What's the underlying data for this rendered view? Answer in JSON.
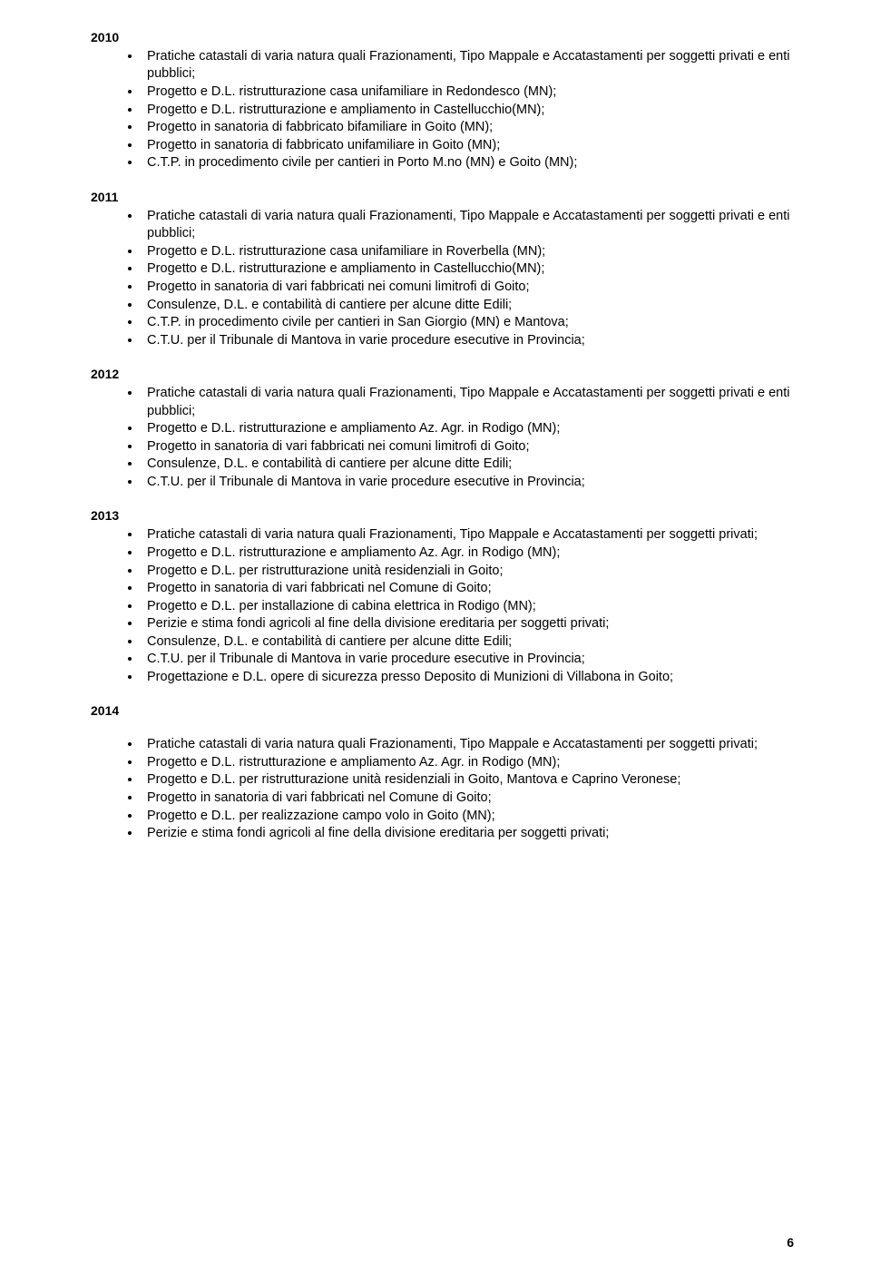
{
  "fontsize_year": 14,
  "fontsize_body": 14.5,
  "fontsize_pagenum": 14,
  "color_text": "#000000",
  "color_background": "#ffffff",
  "page_number": "6",
  "sections": [
    {
      "year": "2010",
      "items": [
        "Pratiche catastali di varia natura quali Frazionamenti, Tipo Mappale e Accatastamenti per soggetti privati e enti pubblici;",
        "Progetto e D.L. ristrutturazione casa unifamiliare in Redondesco (MN);",
        "Progetto e D.L. ristrutturazione e ampliamento in Castellucchio(MN);",
        "Progetto in sanatoria di fabbricato bifamiliare in Goito (MN);",
        "Progetto in sanatoria di fabbricato unifamiliare in Goito (MN);",
        "C.T.P. in procedimento civile per cantieri in Porto M.no (MN) e Goito (MN);"
      ]
    },
    {
      "year": "2011",
      "items": [
        "Pratiche catastali di varia natura quali Frazionamenti, Tipo Mappale e Accatastamenti per soggetti privati e enti pubblici;",
        "Progetto e D.L. ristrutturazione casa unifamiliare in Roverbella (MN);",
        "Progetto e D.L. ristrutturazione e ampliamento in Castellucchio(MN);",
        "Progetto in sanatoria di vari fabbricati nei comuni limitrofi di Goito;",
        "Consulenze, D.L. e contabilità di cantiere per alcune ditte Edili;",
        "C.T.P. in procedimento civile per cantieri in San Giorgio (MN) e Mantova;",
        "C.T.U. per il Tribunale di Mantova in varie procedure esecutive in Provincia;"
      ]
    },
    {
      "year": "2012",
      "items": [
        "Pratiche catastali di varia natura quali Frazionamenti, Tipo Mappale e Accatastamenti per soggetti privati e enti pubblici;",
        "Progetto e D.L. ristrutturazione e ampliamento Az. Agr. in Rodigo (MN);",
        "Progetto in sanatoria di vari fabbricati nei comuni limitrofi di Goito;",
        "Consulenze, D.L. e contabilità di cantiere per alcune ditte Edili;",
        "C.T.U. per il Tribunale di Mantova in varie procedure esecutive in Provincia;"
      ]
    },
    {
      "year": "2013",
      "items": [
        "Pratiche catastali di varia natura quali Frazionamenti, Tipo Mappale e Accatastamenti per soggetti privati;",
        "Progetto e D.L. ristrutturazione e ampliamento Az. Agr. in Rodigo (MN);",
        "Progetto e D.L. per ristrutturazione unità residenziali in Goito;",
        "Progetto in sanatoria di vari fabbricati nel Comune di Goito;",
        "Progetto e D.L. per installazione di cabina elettrica in Rodigo (MN);",
        "Perizie e stima fondi agricoli al fine della divisione ereditaria per soggetti privati;",
        "Consulenze, D.L. e contabilità di cantiere per alcune ditte Edili;",
        "C.T.U. per il Tribunale di Mantova in varie procedure esecutive in Provincia;",
        "Progettazione e D.L. opere di sicurezza presso Deposito di Munizioni di Villabona in Goito;"
      ]
    },
    {
      "year": "2014",
      "gap_before_list": true,
      "items": [
        "Pratiche catastali di varia natura quali Frazionamenti, Tipo Mappale e Accatastamenti per soggetti privati;",
        "Progetto e D.L. ristrutturazione e ampliamento Az. Agr. in Rodigo (MN);",
        "Progetto e D.L. per ristrutturazione unità residenziali in Goito, Mantova e Caprino Veronese;",
        "Progetto in sanatoria di vari fabbricati nel Comune di Goito;",
        "Progetto e D.L. per realizzazione campo volo in Goito (MN);",
        "Perizie e stima fondi agricoli al fine della divisione ereditaria per soggetti privati;"
      ]
    }
  ]
}
